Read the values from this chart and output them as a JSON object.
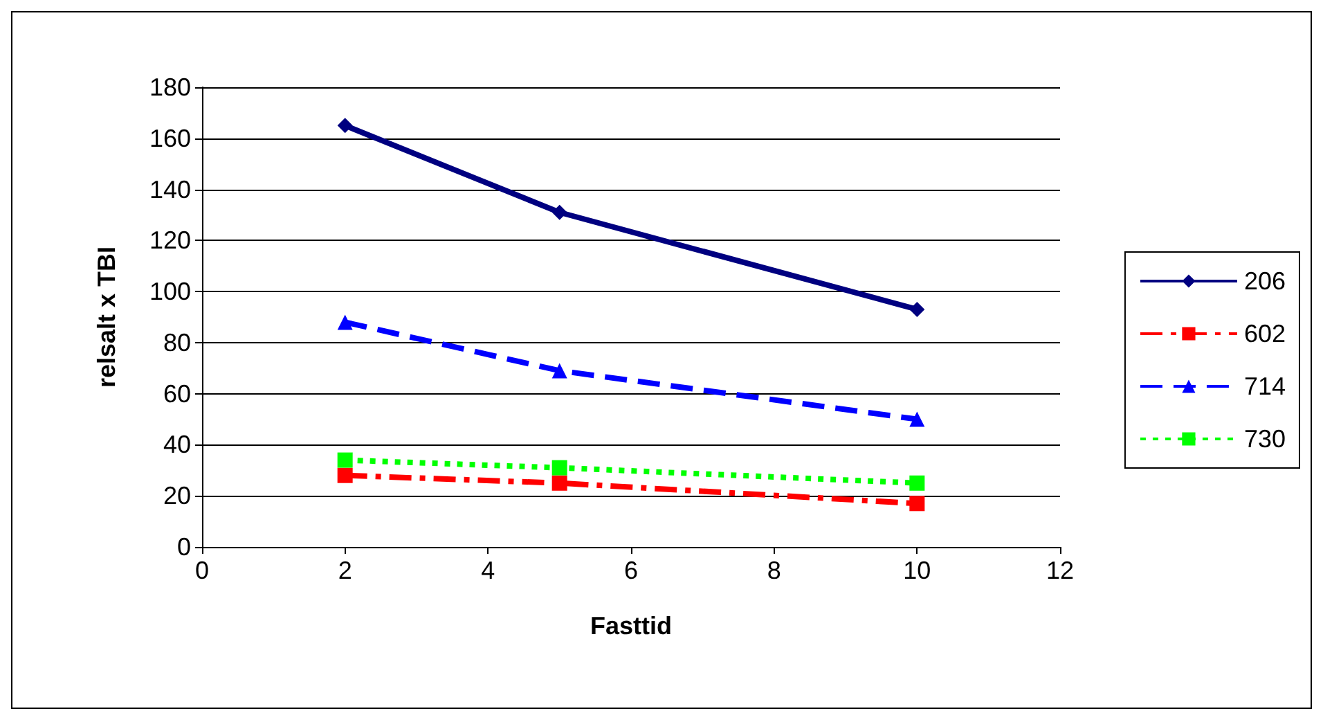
{
  "chart_data": {
    "type": "line",
    "xlabel": "Fasttid",
    "ylabel": "relsalt x TBI",
    "x": [
      2,
      5,
      10
    ],
    "series": [
      {
        "name": "206",
        "color": "#000080",
        "values": [
          165,
          131,
          93
        ],
        "marker": "diamond",
        "line_style": "solid"
      },
      {
        "name": "602",
        "color": "#ff0000",
        "values": [
          28,
          25,
          17
        ],
        "marker": "square",
        "line_style": "dashdot"
      },
      {
        "name": "714",
        "color": "#0000ff",
        "values": [
          88,
          69,
          50
        ],
        "marker": "triangle",
        "line_style": "dashed"
      },
      {
        "name": "730",
        "color": "#00ff00",
        "values": [
          34,
          31,
          25
        ],
        "marker": "square",
        "line_style": "dotted"
      }
    ],
    "xlim": [
      0,
      12
    ],
    "xticks": [
      0,
      2,
      4,
      6,
      8,
      10,
      12
    ],
    "ylim": [
      0,
      180
    ],
    "yticks": [
      0,
      20,
      40,
      60,
      80,
      100,
      120,
      140,
      160,
      180
    ],
    "grid": "y",
    "legend": "right"
  }
}
